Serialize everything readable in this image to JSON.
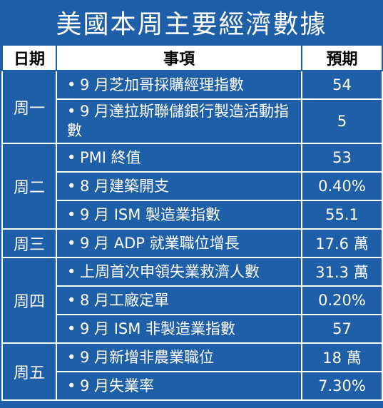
{
  "title": "美國本周主要經濟數據",
  "headers": {
    "day": "日期",
    "item": "事項",
    "expected": "預期"
  },
  "bullet": "•",
  "rows": [
    {
      "day": "周一",
      "item": "9 月芝加哥採購經理指數",
      "expected": "54"
    },
    {
      "item": "9 月達拉斯聯儲銀行製造活動指數",
      "expected": "5"
    },
    {
      "day": "周二",
      "item": "PMI 終值",
      "expected": "53"
    },
    {
      "item": "8 月建築開支",
      "expected": "0.40%"
    },
    {
      "item": "9 月 ISM 製造業指數",
      "expected": "55.1"
    },
    {
      "day": "周三",
      "item": "9 月 ADP 就業職位增長",
      "expected": "17.6 萬"
    },
    {
      "day": "周四",
      "item": "上周首次申領失業救濟人數",
      "expected": "31.3 萬"
    },
    {
      "item": "8 月工廠定單",
      "expected": "0.20%"
    },
    {
      "item": "9 月 ISM 非製造業指數",
      "expected": "57"
    },
    {
      "day": "周五",
      "item": "9 月新增非農業職位",
      "expected": "18 萬"
    },
    {
      "item": "9 月失業率",
      "expected": "7.30%"
    }
  ]
}
